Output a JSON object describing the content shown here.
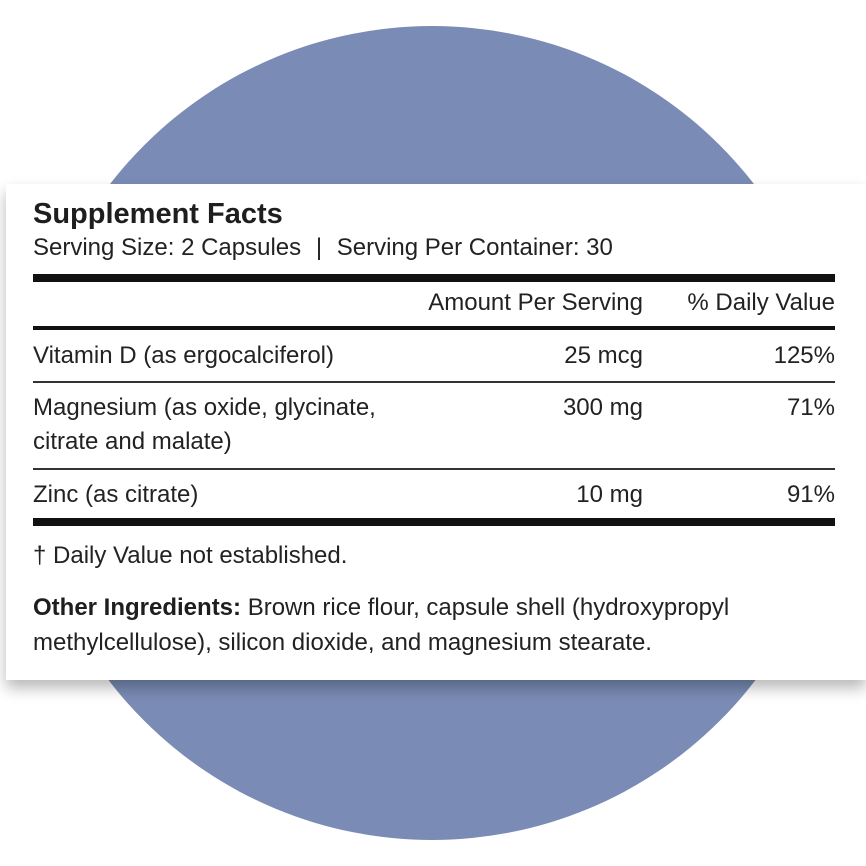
{
  "label": {
    "title": "Supplement Facts",
    "serving_size": "Serving Size: 2 Capsules",
    "separator": "|",
    "servings_per_container": "Serving Per Container: 30",
    "header_amount": "Amount Per Serving",
    "header_dv": "% Daily Value",
    "rows": [
      {
        "name": "Vitamin D (as ergocalciferol)",
        "amount": "25 mcg",
        "dv": "125%"
      },
      {
        "name_line1": "Magnesium (as oxide, glycinate,",
        "name_line2": "citrate and malate)",
        "amount": "300 mg",
        "dv": "71%"
      },
      {
        "name": "Zinc (as citrate)",
        "amount": "10 mg",
        "dv": "91%"
      }
    ],
    "footnote": "† Daily Value not established.",
    "other_ingredients_label": "Other Ingredients:",
    "other_ingredients_text": " Brown rice flour, capsule shell (hydroxypropyl methylcellulose), silicon dioxide, and magnesium stearate."
  },
  "colors": {
    "circle": "#7a8cb6",
    "panel": "#ffffff",
    "text": "#222222"
  }
}
